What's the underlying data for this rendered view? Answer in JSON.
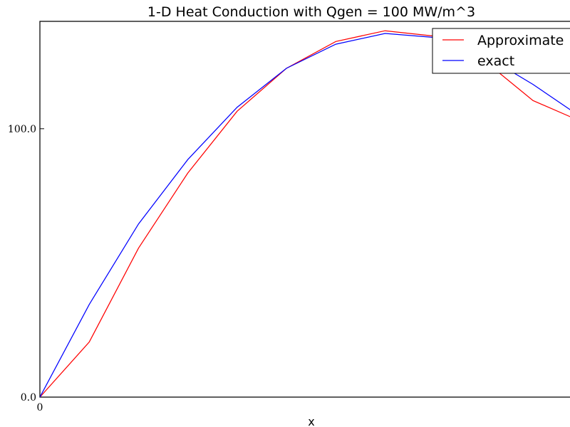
{
  "chart_data": {
    "type": "line",
    "title": "1-D Heat Conduction with Qgen = 100 MW/m^3",
    "xlabel": "x",
    "ylabel": "",
    "xlim": [
      0,
      0.1075
    ],
    "ylim": [
      0,
      140
    ],
    "x_ticks": [
      0
    ],
    "x_tick_labels": [
      "0"
    ],
    "y_ticks": [
      0,
      100
    ],
    "y_tick_labels": [
      "0.0",
      "100.0"
    ],
    "grid": false,
    "legend_position": "top-right",
    "series": [
      {
        "name": "Approximate",
        "color": "#ff0000",
        "x": [
          0,
          0.01,
          0.02,
          0.03,
          0.04,
          0.05,
          0.06,
          0.07,
          0.08,
          0.09,
          0.1,
          0.11
        ],
        "y": [
          0,
          20.5,
          55.5,
          83.5,
          106.5,
          122.5,
          132.5,
          136.5,
          134.5,
          125.5,
          110.5,
          102.5
        ]
      },
      {
        "name": "exact",
        "color": "#0000ff",
        "x": [
          0,
          0.01,
          0.02,
          0.03,
          0.04,
          0.05,
          0.06,
          0.07,
          0.08,
          0.09,
          0.1,
          0.11
        ],
        "y": [
          0,
          34.5,
          64.5,
          88.5,
          108,
          122.5,
          131.5,
          135.5,
          134,
          127.5,
          116.5,
          104
        ]
      }
    ]
  }
}
